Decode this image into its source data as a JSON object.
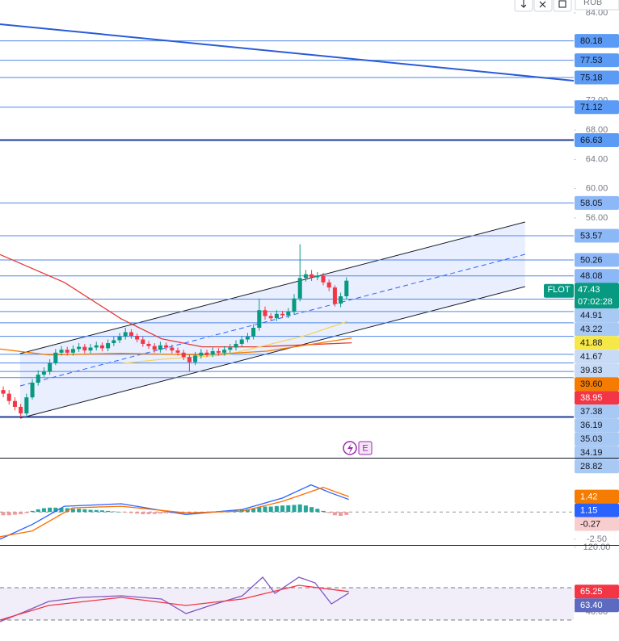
{
  "toolbar": {
    "currency": "RUB"
  },
  "markers": {
    "earnings": "E"
  },
  "chart_data": [
    {
      "type": "candlestick",
      "xlim": [
        -0.56,
        98.06
      ],
      "ylim": [
        23.25,
        85.76
      ],
      "yticks": [
        {
          "value": 84,
          "label": "84.00"
        },
        {
          "value": 72,
          "label": "72.00"
        },
        {
          "value": 68,
          "label": "68.00"
        },
        {
          "value": 64,
          "label": "64.00"
        },
        {
          "value": 60,
          "label": "60.00"
        },
        {
          "value": 56,
          "label": "56.00"
        }
      ],
      "up_color": "#089981",
      "down_color": "#f23645",
      "x": [
        0,
        1,
        2,
        3,
        4,
        5,
        6,
        7,
        8,
        9,
        10,
        11,
        12,
        13,
        14,
        15,
        16,
        17,
        18,
        19,
        20,
        21,
        22,
        23,
        24,
        25,
        26,
        27,
        28,
        29,
        30,
        31,
        32,
        33,
        34,
        35,
        36,
        37,
        38,
        39,
        40,
        41,
        42,
        43,
        44,
        45,
        46,
        47,
        48,
        49,
        50,
        51,
        52,
        53,
        54,
        55,
        56,
        57,
        58,
        59
      ],
      "open": [
        32.5,
        32.0,
        31.0,
        30.2,
        29.3,
        31.5,
        33.5,
        34.6,
        35.0,
        36.2,
        37.6,
        38.0,
        37.6,
        38.1,
        38.4,
        37.9,
        38.3,
        38.6,
        38.2,
        38.9,
        39.3,
        39.8,
        40.4,
        39.9,
        39.4,
        38.8,
        38.5,
        38.0,
        38.6,
        38.3,
        37.9,
        37.6,
        37.0,
        36.3,
        37.2,
        37.6,
        37.3,
        37.8,
        37.6,
        38.0,
        38.3,
        38.8,
        39.4,
        39.8,
        41.0,
        43.4,
        42.6,
        42.3,
        42.9,
        42.7,
        43.2,
        45.0,
        47.8,
        48.3,
        47.9,
        48.1,
        47.2,
        46.5,
        44.3,
        45.3
      ],
      "high": [
        33.0,
        32.5,
        31.5,
        30.6,
        32.0,
        34.0,
        35.2,
        35.6,
        36.7,
        38.1,
        38.5,
        38.4,
        38.6,
        38.9,
        38.8,
        38.8,
        39.1,
        39.0,
        39.4,
        39.8,
        40.3,
        41.0,
        40.8,
        40.2,
        39.8,
        39.2,
        38.9,
        39.1,
        39.0,
        38.7,
        38.3,
        38.0,
        37.4,
        37.7,
        38.1,
        38.0,
        38.3,
        38.2,
        38.5,
        38.8,
        39.3,
        39.9,
        40.3,
        41.5,
        45.0,
        43.9,
        43.0,
        43.4,
        43.3,
        43.7,
        45.6,
        52.4,
        48.9,
        48.9,
        48.6,
        48.5,
        47.6,
        46.8,
        45.8,
        47.9
      ],
      "low": [
        31.5,
        30.5,
        29.7,
        28.7,
        29.0,
        31.2,
        33.1,
        34.3,
        34.6,
        35.9,
        37.2,
        37.2,
        37.2,
        37.7,
        37.5,
        37.5,
        37.9,
        37.8,
        37.8,
        38.5,
        38.9,
        39.4,
        39.5,
        39.0,
        38.4,
        38.1,
        37.6,
        37.6,
        37.9,
        37.5,
        37.2,
        36.6,
        35.0,
        35.9,
        36.8,
        37.0,
        37.0,
        37.2,
        37.2,
        37.6,
        37.9,
        38.4,
        39.0,
        39.4,
        40.6,
        42.1,
        41.9,
        41.9,
        42.3,
        42.3,
        42.8,
        44.6,
        47.3,
        47.4,
        47.5,
        46.8,
        46.0,
        43.9,
        43.8,
        44.9
      ],
      "close": [
        32.0,
        31.0,
        30.2,
        29.3,
        31.5,
        33.5,
        34.6,
        35.0,
        36.2,
        37.6,
        38.0,
        37.6,
        38.1,
        38.4,
        37.9,
        38.3,
        38.6,
        38.2,
        38.9,
        39.3,
        39.8,
        40.4,
        39.9,
        39.4,
        38.8,
        38.5,
        38.0,
        38.6,
        38.3,
        37.9,
        37.6,
        37.0,
        36.3,
        37.2,
        37.6,
        37.3,
        37.8,
        37.6,
        38.0,
        38.3,
        38.8,
        39.4,
        39.8,
        41.0,
        43.4,
        42.6,
        42.3,
        42.9,
        42.7,
        43.2,
        45.0,
        47.8,
        48.3,
        47.9,
        48.1,
        47.2,
        46.5,
        44.3,
        45.3,
        47.43
      ],
      "series": [
        {
          "color": "#e53935",
          "x": [
            -0.56,
            10.5,
            20.3,
            27.2,
            34.2,
            43.9,
            59.9
          ],
          "values": [
            51.0,
            47.2,
            42.2,
            39.5,
            38.4,
            38.4,
            38.95
          ]
        },
        {
          "color": "#f2d65a",
          "x": [
            20.3,
            27.2,
            38.3,
            46.7,
            52.2,
            59.2
          ],
          "values": [
            36.1,
            36.7,
            37.3,
            38.9,
            40.0,
            41.88
          ]
        },
        {
          "color": "#f57c00",
          "x": [
            -0.56,
            7.8,
            20.3,
            34.2,
            45.3,
            59.9
          ],
          "values": [
            38.1,
            37.3,
            37.5,
            37.3,
            37.8,
            39.6
          ]
        }
      ],
      "channel": {
        "x": [
          2.9,
          89.7
        ],
        "lower": [
          28.65,
          46.62
        ],
        "upper": [
          37.47,
          55.44
        ],
        "fill": "rgba(41,98,255,0.1)",
        "mid_color": "#2962ff"
      },
      "trendlines": [
        {
          "x": [
            -0.56,
            98.06
          ],
          "values": [
            82.46,
            74.74
          ],
          "color": "#2a5bd7",
          "width": 2
        }
      ],
      "level_line_color": "#4f86e8",
      "levels": [
        {
          "value": 80.18,
          "color": "#5b9bf5"
        },
        {
          "value": 77.53,
          "color": "#5b9bf5"
        },
        {
          "value": 75.18,
          "color": "#5b9bf5"
        },
        {
          "value": 71.12,
          "color": "#5b9bf5"
        },
        {
          "value": 66.63,
          "color": "#5b9bf5",
          "line_color": "#1f3d99",
          "weight": 2
        },
        {
          "value": 58.05,
          "color": "#8db8f7"
        },
        {
          "value": 53.57,
          "color": "#8db8f7"
        },
        {
          "value": 50.26,
          "color": "#8db8f7"
        },
        {
          "value": 48.08,
          "color": "#8db8f7"
        },
        {
          "value": 44.91,
          "color": "#a9c9f5"
        },
        {
          "value": 43.22,
          "color": "#a9c9f5"
        },
        {
          "value": 41.67,
          "color": "#c7dbf6"
        },
        {
          "value": 39.83,
          "color": "#c7dbf6"
        },
        {
          "value": 37.38,
          "color": "#a9c9f5"
        },
        {
          "value": 36.19,
          "color": "#a9c9f5"
        },
        {
          "value": 35.03,
          "color": "#a9c9f5"
        },
        {
          "value": 34.19,
          "color": "#a9c9f5"
        },
        {
          "value": 28.82,
          "color": "#a9c9f5",
          "line_color": "#1f3d99",
          "weight": 2
        }
      ],
      "price_labels": [
        {
          "symbol": "FLOT",
          "value": 47.43,
          "countdown": "07:02:28",
          "color": "#089981",
          "text_color": "#ffffff"
        },
        {
          "value": 41.88,
          "color": "#f7e84a"
        },
        {
          "value": 39.6,
          "label": "39.60",
          "color": "#f57c00"
        },
        {
          "value": 38.95,
          "color": "#f23645",
          "text_color": "#ffffff"
        }
      ]
    },
    {
      "type": "macd",
      "xlim": [
        -0.56,
        98.06
      ],
      "ylim": [
        -3.03,
        4.92
      ],
      "yticks": [
        {
          "value": -2.5,
          "label": "-2.50"
        }
      ],
      "zero_line": 0,
      "histogram": {
        "up_color": "#26a69a",
        "down_color": "#ef9a9a",
        "values": [
          -0.3,
          -0.3,
          -0.25,
          -0.2,
          -0.1,
          0.1,
          0.25,
          0.35,
          0.4,
          0.4,
          0.38,
          0.35,
          0.3,
          0.3,
          0.25,
          0.2,
          0.18,
          0.15,
          0.1,
          0.05,
          0.02,
          -0.05,
          -0.1,
          -0.15,
          -0.2,
          -0.2,
          -0.18,
          -0.15,
          -0.12,
          -0.1,
          -0.1,
          -0.12,
          -0.15,
          -0.1,
          -0.05,
          0.02,
          0.05,
          0.08,
          0.1,
          0.12,
          0.15,
          0.2,
          0.25,
          0.3,
          0.45,
          0.5,
          0.5,
          0.55,
          0.6,
          0.62,
          0.65,
          0.7,
          0.6,
          0.45,
          0.3,
          0.1,
          -0.1,
          -0.3,
          -0.35,
          -0.27
        ]
      },
      "series": [
        {
          "color": "#2962ff",
          "x": [
            -0.56,
            5,
            10.5,
            20.3,
            31.4,
            41.1,
            48,
            52.9,
            56.4,
            59.4
          ],
          "values": [
            -2.5,
            -1.14,
            0.53,
            0.76,
            -0.23,
            0.23,
            1.29,
            2.5,
            1.74,
            1.15
          ]
        },
        {
          "color": "#ff6d00",
          "x": [
            -0.56,
            5,
            11.9,
            20.3,
            31.4,
            41.1,
            48,
            55,
            59.4
          ],
          "values": [
            -2.27,
            -1.74,
            0.38,
            0.53,
            -0.08,
            0.08,
            0.98,
            2.27,
            1.42
          ]
        }
      ],
      "price_labels": [
        {
          "value": 1.42,
          "color": "#f57c00",
          "text_color": "#ffffff"
        },
        {
          "value": 1.15,
          "color": "#2962ff",
          "text_color": "#ffffff"
        },
        {
          "value": -0.27,
          "color": "#f8cdcd"
        }
      ]
    },
    {
      "type": "rsi",
      "xlim": [
        -0.56,
        98.06
      ],
      "ylim": [
        4,
        122
      ],
      "yticks": [
        {
          "value": 120,
          "label": "120.00"
        },
        {
          "value": 40,
          "label": "40.00"
        }
      ],
      "band": [
        30,
        70
      ],
      "band_fill": "rgba(126,87,194,0.1)",
      "series": [
        {
          "color": "#7e57c2",
          "x": [
            -0.56,
            3.6,
            7.8,
            13.4,
            20.3,
            27.2,
            31.4,
            35.6,
            41.1,
            44.6,
            46.7,
            50.8,
            53.6,
            56.4,
            59.4
          ],
          "values": [
            28,
            40,
            53,
            58,
            60,
            56,
            38,
            48,
            60,
            83,
            63,
            83,
            76,
            50,
            63.4
          ]
        },
        {
          "color": "#f23645",
          "x": [
            -0.56,
            7.8,
            20.3,
            31.4,
            41.1,
            50.8,
            59.4
          ],
          "values": [
            30,
            48,
            58,
            48,
            56,
            73,
            65.25
          ]
        }
      ],
      "price_labels": [
        {
          "value": 65.25,
          "color": "#f23645",
          "text_color": "#ffffff"
        },
        {
          "value": 63.4,
          "label": "63.40",
          "color": "#5c6bc0",
          "text_color": "#ffffff"
        }
      ]
    }
  ]
}
